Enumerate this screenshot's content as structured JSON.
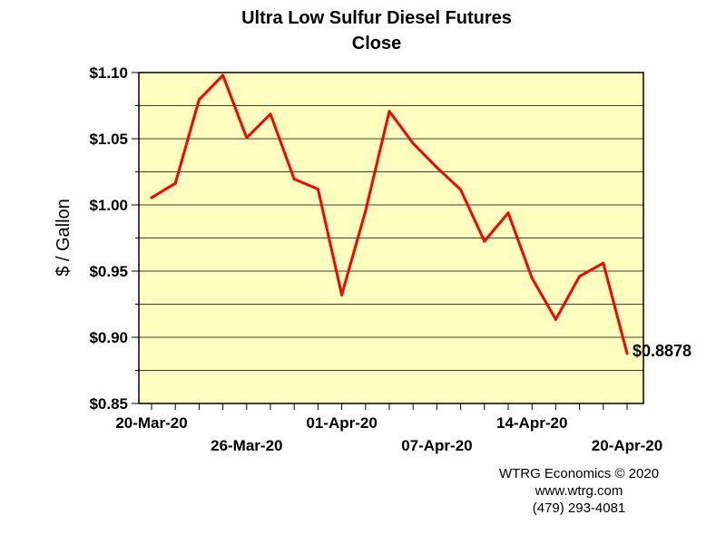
{
  "colors": {
    "plot_background": "#FFFFC0",
    "series_line": "#FF0000",
    "gridline": "#000000"
  },
  "credits": {
    "line1": "WTRG Economics © 2020",
    "line2": "www.wtrg.com",
    "line3": "(479) 293-4081"
  },
  "chart_data": {
    "type": "line",
    "title": "Ultra Low Sulfur Diesel Futures",
    "subtitle": "Close",
    "xlabel": "",
    "ylabel": "$ / Gallon",
    "ylim": [
      0.85,
      1.1
    ],
    "yticks": [
      1.1,
      1.05,
      1.0,
      0.95,
      0.9,
      0.85
    ],
    "ytick_labels": [
      "$1.10",
      "$1.05",
      "$1.00",
      "$0.95",
      "$0.90",
      "$0.85"
    ],
    "grid": true,
    "x": [
      "20-Mar-20",
      "23-Mar-20",
      "24-Mar-20",
      "25-Mar-20",
      "26-Mar-20",
      "27-Mar-20",
      "30-Mar-20",
      "31-Mar-20",
      "01-Apr-20",
      "02-Apr-20",
      "03-Apr-20",
      "06-Apr-20",
      "07-Apr-20",
      "08-Apr-20",
      "09-Apr-20",
      "13-Apr-20",
      "14-Apr-20",
      "15-Apr-20",
      "16-Apr-20",
      "17-Apr-20",
      "20-Apr-20"
    ],
    "xtick_labels_row1": [
      {
        "index": 0,
        "label": "20-Mar-20"
      },
      {
        "index": 8,
        "label": "01-Apr-20"
      },
      {
        "index": 16,
        "label": "14-Apr-20"
      }
    ],
    "xtick_labels_row2": [
      {
        "index": 4,
        "label": "26-Mar-20"
      },
      {
        "index": 12,
        "label": "07-Apr-20"
      },
      {
        "index": 20,
        "label": "20-Apr-20"
      }
    ],
    "series": [
      {
        "values": [
          1.0055,
          1.0163,
          1.0795,
          1.0979,
          1.0507,
          1.0686,
          1.0195,
          1.012,
          0.932,
          0.9955,
          1.0707,
          1.0465,
          1.0283,
          1.0115,
          0.9725,
          0.994,
          0.9448,
          0.9135,
          0.946,
          0.956,
          0.8878
        ]
      }
    ],
    "end_label": "$0.8878"
  }
}
